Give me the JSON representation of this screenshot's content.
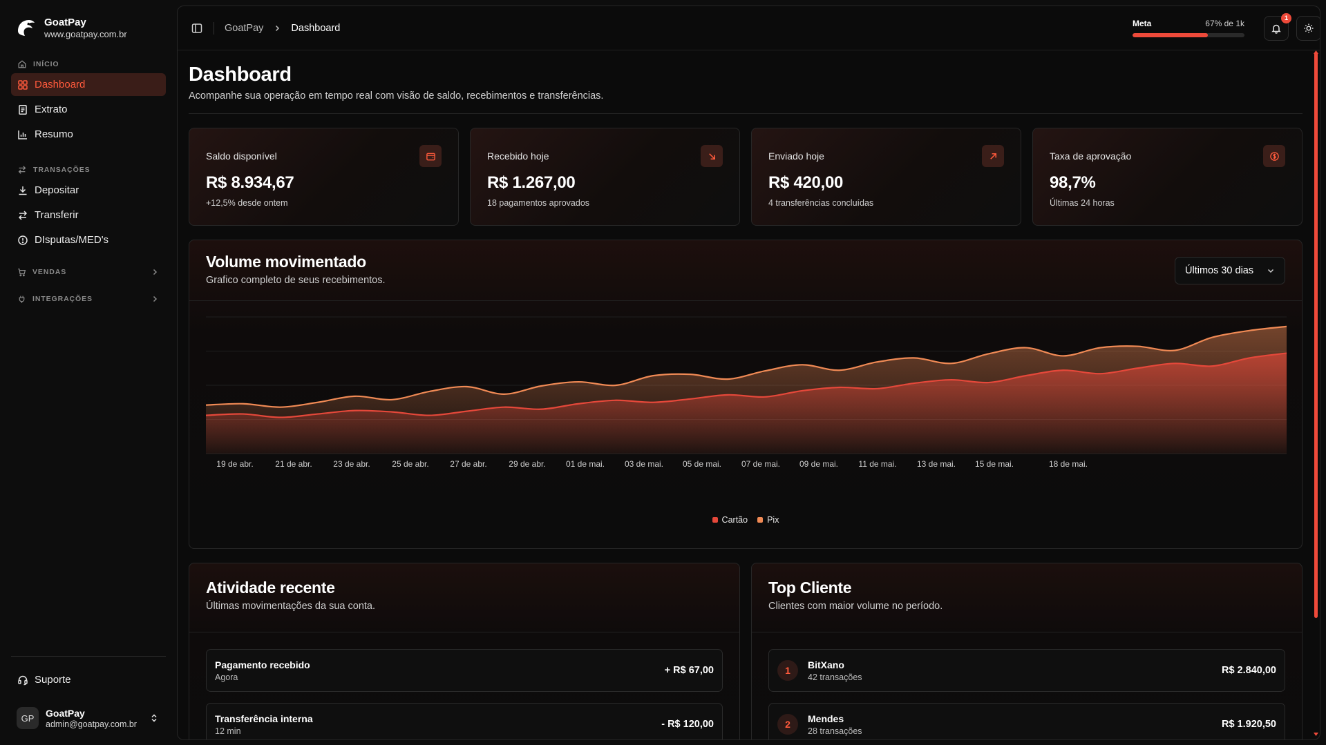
{
  "brand": {
    "name": "GoatPay",
    "url": "www.goatpay.com.br"
  },
  "sidebar": {
    "sections": [
      {
        "label": "INÍCIO",
        "icon": "home-icon",
        "items": [
          {
            "label": "Dashboard",
            "icon": "grid-icon",
            "active": true
          },
          {
            "label": "Extrato",
            "icon": "receipt-icon",
            "active": false
          },
          {
            "label": "Resumo",
            "icon": "bar-chart-icon",
            "active": false
          }
        ]
      },
      {
        "label": "TRANSAÇÕES",
        "icon": "arrows-icon",
        "items": [
          {
            "label": "Depositar",
            "icon": "download-icon",
            "active": false
          },
          {
            "label": "Transferir",
            "icon": "transfer-icon",
            "active": false
          },
          {
            "label": "DIsputas/MED's",
            "icon": "alert-circle-icon",
            "active": false
          }
        ]
      }
    ],
    "collapsibles": [
      {
        "label": "VENDAS",
        "icon": "cart-icon"
      },
      {
        "label": "INTEGRAÇÕES",
        "icon": "plug-icon"
      }
    ],
    "support": "Suporte",
    "user": {
      "initials": "GP",
      "name": "GoatPay",
      "email": "admin@goatpay.com.br"
    }
  },
  "topbar": {
    "breadcrumb": [
      "GoatPay",
      "Dashboard"
    ],
    "goal": {
      "label": "Meta",
      "value_text": "67% de 1k",
      "progress": 0.67
    },
    "notifications": "1"
  },
  "page": {
    "title": "Dashboard",
    "subtitle": "Acompanhe sua operação em tempo real com visão de saldo, recebimentos e transferências."
  },
  "stats": [
    {
      "label": "Saldo disponível",
      "value": "R$ 8.934,67",
      "note": "+12,5% desde ontem",
      "icon": "wallet-icon"
    },
    {
      "label": "Recebido hoje",
      "value": "R$ 1.267,00",
      "note": "18 pagamentos aprovados",
      "icon": "arrow-down-right-icon"
    },
    {
      "label": "Enviado hoje",
      "value": "R$ 420,00",
      "note": "4 transferências concluídas",
      "icon": "arrow-up-right-icon"
    },
    {
      "label": "Taxa de aprovação",
      "value": "98,7%",
      "note": "Últimas 24 horas",
      "icon": "dollar-circle-icon"
    }
  ],
  "volume": {
    "title": "Volume movimentado",
    "subtitle": "Grafico completo de seus recebimentos.",
    "range": "Últimos 30 dias"
  },
  "chart_data": {
    "type": "area",
    "title": "",
    "xlabel": "",
    "ylabel": "",
    "grid": true,
    "legend": "bottom-center",
    "ylim": [
      0,
      200
    ],
    "x_ticks": [
      "19 de abr.",
      "21 de abr.",
      "23 de abr.",
      "25 de abr.",
      "27 de abr.",
      "29 de abr.",
      "01 de mai.",
      "03 de mai.",
      "05 de mai.",
      "07 de mai.",
      "09 de mai.",
      "11 de mai.",
      "13 de mai.",
      "15 de mai.",
      "18 de mai."
    ],
    "series": [
      {
        "name": "Cartão",
        "color": "#e5483a",
        "values": [
          56,
          58,
          53,
          58,
          63,
          61,
          56,
          62,
          68,
          65,
          73,
          78,
          75,
          80,
          86,
          83,
          92,
          97,
          95,
          103,
          108,
          104,
          114,
          122,
          117,
          125,
          132,
          128,
          140,
          147
        ]
      },
      {
        "name": "Pix",
        "color": "#f08a55",
        "values": [
          71,
          73,
          68,
          75,
          84,
          79,
          91,
          98,
          87,
          99,
          105,
          100,
          114,
          116,
          109,
          121,
          130,
          122,
          134,
          140,
          132,
          146,
          155,
          143,
          155,
          157,
          151,
          170,
          180,
          186
        ]
      }
    ]
  },
  "activity": {
    "title": "Atividade recente",
    "subtitle": "Últimas movimentações da sua conta.",
    "rows": [
      {
        "title": "Pagamento recebido",
        "sub": "Agora",
        "amount": "+ R$ 67,00"
      },
      {
        "title": "Transferência interna",
        "sub": "12 min",
        "amount": "- R$ 120,00"
      }
    ]
  },
  "top_clients": {
    "title": "Top Cliente",
    "subtitle": "Clientes com maior volume no período.",
    "rows": [
      {
        "rank": "1",
        "name": "BitXano",
        "sub": "42 transações",
        "amount": "R$ 2.840,00"
      },
      {
        "rank": "2",
        "name": "Mendes",
        "sub": "28 transações",
        "amount": "R$ 1.920,50"
      }
    ]
  },
  "colors": {
    "accent": "#ee4a3a",
    "accent_active_bg": "#3a1d18",
    "background": "#0d0d0d"
  }
}
